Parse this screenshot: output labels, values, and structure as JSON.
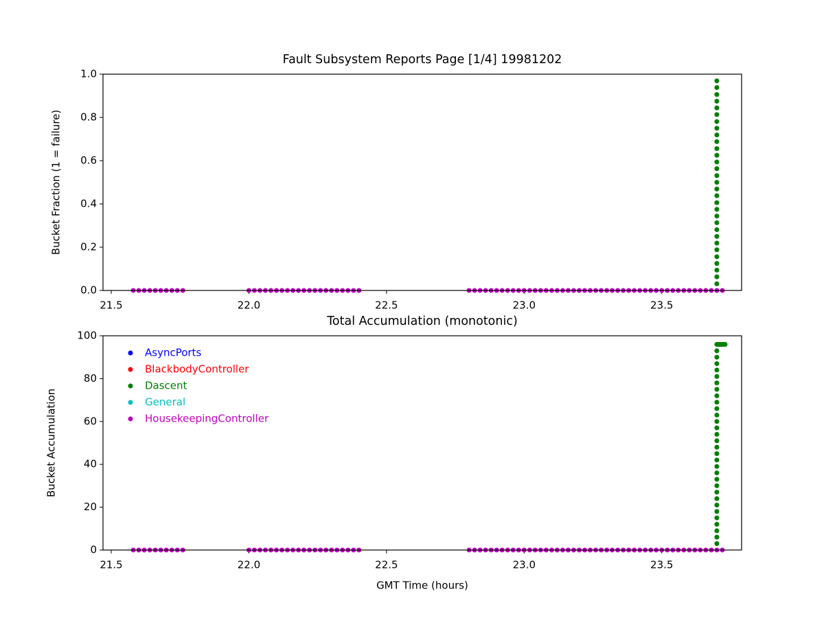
{
  "chart_data": [
    {
      "type": "scatter",
      "title": "Fault Subsystem Reports Page [1/4] 19981202",
      "y_label": "Bucket Fraction (1 = failure)",
      "xlim": [
        21.47,
        23.79
      ],
      "ylim": [
        0,
        1
      ],
      "xticks": [
        21.5,
        {
          "value": 22,
          "label": "22.0"
        },
        22.5,
        {
          "value": 23,
          "label": "23.0"
        },
        23.5
      ],
      "yticks": [
        {
          "value": 0,
          "label": "0.0"
        },
        0.2,
        0.4,
        0.6,
        0.8,
        {
          "value": 1,
          "label": "1.0"
        }
      ],
      "series": [
        {
          "color": "#008000",
          "x": [
            23.7,
            23.7,
            23.7,
            23.7,
            23.7,
            23.7,
            23.7,
            23.7,
            23.7,
            23.7,
            23.7,
            23.7,
            23.7,
            23.7,
            23.7,
            23.7,
            23.7,
            23.7,
            23.7,
            23.7,
            23.7,
            23.7,
            23.7,
            23.7,
            23.7,
            23.7,
            23.7,
            23.7,
            23.7,
            23.7,
            23.7
          ],
          "values": [
            0.031,
            0.063,
            0.094,
            0.125,
            0.156,
            0.188,
            0.219,
            0.25,
            0.281,
            0.313,
            0.344,
            0.375,
            0.406,
            0.438,
            0.469,
            0.5,
            0.531,
            0.563,
            0.594,
            0.625,
            0.656,
            0.688,
            0.719,
            0.75,
            0.781,
            0.813,
            0.844,
            0.875,
            0.906,
            0.938,
            0.969
          ]
        },
        {
          "color": "#bf00bf",
          "x": [
            21.58,
            21.6,
            21.62,
            21.64,
            21.66,
            21.68,
            21.7,
            21.72,
            21.74,
            21.76,
            22,
            22.02,
            22.04,
            22.06,
            22.08,
            22.1,
            22.12,
            22.14,
            22.16,
            22.18,
            22.2,
            22.22,
            22.24,
            22.26,
            22.28,
            22.3,
            22.32,
            22.34,
            22.36,
            22.38,
            22.4,
            22.8,
            22.82,
            22.84,
            22.86,
            22.88,
            22.9,
            22.92,
            22.94,
            22.96,
            22.98,
            23,
            23.02,
            23.04,
            23.06,
            23.08,
            23.1,
            23.12,
            23.14,
            23.16,
            23.18,
            23.2,
            23.22,
            23.24,
            23.26,
            23.28,
            23.3,
            23.32,
            23.34,
            23.36,
            23.38,
            23.4,
            23.42,
            23.44,
            23.46,
            23.48,
            23.5,
            23.52,
            23.54,
            23.56,
            23.58,
            23.6,
            23.62,
            23.64,
            23.66,
            23.68,
            23.7,
            23.72
          ],
          "values": [
            0,
            0,
            0,
            0,
            0,
            0,
            0,
            0,
            0,
            0,
            0,
            0,
            0,
            0,
            0,
            0,
            0,
            0,
            0,
            0,
            0,
            0,
            0,
            0,
            0,
            0,
            0,
            0,
            0,
            0,
            0,
            0,
            0,
            0,
            0,
            0,
            0,
            0,
            0,
            0,
            0,
            0,
            0,
            0,
            0,
            0,
            0,
            0,
            0,
            0,
            0,
            0,
            0,
            0,
            0,
            0,
            0,
            0,
            0,
            0,
            0,
            0,
            0,
            0,
            0,
            0,
            0,
            0,
            0,
            0,
            0,
            0,
            0,
            0,
            0,
            0,
            0,
            0
          ]
        }
      ]
    },
    {
      "type": "scatter",
      "title": "Total Accumulation (monotonic)",
      "x_label": "GMT Time (hours)",
      "y_label": "Bucket Accumulation",
      "xlim": [
        21.47,
        23.79
      ],
      "ylim": [
        0,
        100
      ],
      "xticks": [
        21.5,
        {
          "value": 22,
          "label": "22.0"
        },
        22.5,
        {
          "value": 23,
          "label": "23.0"
        },
        23.5
      ],
      "yticks": [
        0,
        20,
        40,
        60,
        80,
        100
      ],
      "legend": "upper left",
      "series": [
        {
          "name": "AsyncPorts",
          "color": "#0000ff",
          "x": [],
          "values": []
        },
        {
          "name": "BlackbodyController",
          "color": "#ff0000",
          "x": [],
          "values": []
        },
        {
          "name": "Dascent",
          "color": "#008000",
          "x": [
            23.7,
            23.7,
            23.7,
            23.7,
            23.7,
            23.7,
            23.7,
            23.7,
            23.7,
            23.7,
            23.7,
            23.7,
            23.7,
            23.7,
            23.7,
            23.7,
            23.7,
            23.7,
            23.7,
            23.7,
            23.7,
            23.7,
            23.7,
            23.7,
            23.7,
            23.7,
            23.7,
            23.7,
            23.7,
            23.7,
            23.7,
            23.7,
            23.705,
            23.71,
            23.715,
            23.72,
            23.725,
            23.73
          ],
          "values": [
            3,
            6,
            9,
            12,
            15,
            18,
            21,
            24,
            27,
            30,
            33,
            36,
            39,
            42,
            45,
            48,
            51,
            54,
            57,
            60,
            63,
            66,
            69,
            72,
            75,
            78,
            81,
            84,
            87,
            90,
            93,
            96,
            96,
            96,
            96,
            96,
            96,
            96
          ]
        },
        {
          "name": "General",
          "color": "#00bfbf",
          "x": [],
          "values": []
        },
        {
          "name": "HousekeepingController",
          "color": "#bf00bf",
          "x": [
            21.58,
            21.6,
            21.62,
            21.64,
            21.66,
            21.68,
            21.7,
            21.72,
            21.74,
            21.76,
            22,
            22.02,
            22.04,
            22.06,
            22.08,
            22.1,
            22.12,
            22.14,
            22.16,
            22.18,
            22.2,
            22.22,
            22.24,
            22.26,
            22.28,
            22.3,
            22.32,
            22.34,
            22.36,
            22.38,
            22.4,
            22.8,
            22.82,
            22.84,
            22.86,
            22.88,
            22.9,
            22.92,
            22.94,
            22.96,
            22.98,
            23,
            23.02,
            23.04,
            23.06,
            23.08,
            23.1,
            23.12,
            23.14,
            23.16,
            23.18,
            23.2,
            23.22,
            23.24,
            23.26,
            23.28,
            23.3,
            23.32,
            23.34,
            23.36,
            23.38,
            23.4,
            23.42,
            23.44,
            23.46,
            23.48,
            23.5,
            23.52,
            23.54,
            23.56,
            23.58,
            23.6,
            23.62,
            23.64,
            23.66,
            23.68,
            23.7,
            23.72
          ],
          "values": [
            0,
            0,
            0,
            0,
            0,
            0,
            0,
            0,
            0,
            0,
            0,
            0,
            0,
            0,
            0,
            0,
            0,
            0,
            0,
            0,
            0,
            0,
            0,
            0,
            0,
            0,
            0,
            0,
            0,
            0,
            0,
            0,
            0,
            0,
            0,
            0,
            0,
            0,
            0,
            0,
            0,
            0,
            0,
            0,
            0,
            0,
            0,
            0,
            0,
            0,
            0,
            0,
            0,
            0,
            0,
            0,
            0,
            0,
            0,
            0,
            0,
            0,
            0,
            0,
            0,
            0,
            0,
            0,
            0,
            0,
            0,
            0,
            0,
            0,
            0,
            0,
            0,
            0
          ]
        }
      ]
    }
  ]
}
